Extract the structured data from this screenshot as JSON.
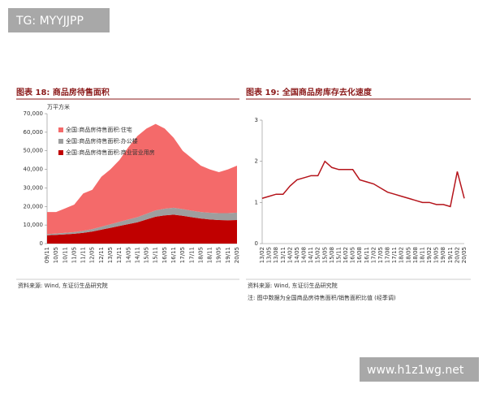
{
  "watermark": "TG: MYYJJPP",
  "site": "www.h1z1wg.net",
  "chart_data": [
    {
      "type": "stacked_area",
      "title": "图表 18: 商品房待售面积",
      "y_label": "万平方米",
      "source": "资料来源: Wind, 东证衍生品研究院",
      "categories": [
        "09/11",
        "10/05",
        "10/11",
        "11/05",
        "11/11",
        "12/05",
        "12/11",
        "13/05",
        "13/11",
        "14/05",
        "14/11",
        "15/05",
        "15/11",
        "16/05",
        "16/11",
        "17/05",
        "17/11",
        "18/05",
        "18/11",
        "19/05",
        "19/11",
        "20/05"
      ],
      "series": [
        {
          "name": "全国:商品房待售面积:商业营业用房",
          "color": "#c00000",
          "values": [
            4500,
            4700,
            5000,
            5300,
            5800,
            6500,
            7500,
            8500,
            9500,
            10500,
            11500,
            13000,
            14500,
            15200,
            15600,
            15000,
            14200,
            13500,
            13000,
            12700,
            12600,
            12700
          ]
        },
        {
          "name": "全国:商品房待售面积:办公楼",
          "color": "#9e9e9e",
          "values": [
            600,
            700,
            800,
            900,
            1100,
            1300,
            1600,
            1900,
            2200,
            2500,
            2800,
            3100,
            3400,
            3600,
            3700,
            3600,
            3500,
            3500,
            3600,
            3700,
            3800,
            4000
          ]
        },
        {
          "name": "全国:商品房待售面积:住宅",
          "color": "#f46a6a",
          "values": [
            11900,
            11600,
            13200,
            14800,
            20100,
            21200,
            26900,
            29600,
            33300,
            39000,
            43700,
            45900,
            46600,
            43200,
            37700,
            31400,
            28300,
            25000,
            23400,
            22100,
            23600,
            25300
          ]
        }
      ],
      "ylim": [
        0,
        70000
      ],
      "yticks": [
        0,
        {
          "value": 10000,
          "label": "10,000"
        },
        {
          "value": 20000,
          "label": "20,000"
        },
        {
          "value": 30000,
          "label": "30,000"
        },
        {
          "value": 40000,
          "label": "40,000"
        },
        {
          "value": 50000,
          "label": "50,000"
        },
        {
          "value": 60000,
          "label": "60,000"
        },
        {
          "value": 70000,
          "label": "70,000"
        }
      ]
    },
    {
      "type": "line",
      "title": "图表 19: 全国商品房库存去化速度",
      "source": "资料来源: Wind, 东证衍生品研究院",
      "note": "注: 图中数据为全国商品房待售面积/销售面积比值 (经季调)",
      "categories": [
        "13/02",
        "13/05",
        "13/08",
        "13/11",
        "14/02",
        "14/05",
        "14/08",
        "14/11",
        "15/02",
        "15/05",
        "15/08",
        "15/11",
        "16/02",
        "16/05",
        "16/08",
        "16/11",
        "17/02",
        "17/05",
        "17/08",
        "17/11",
        "18/02",
        "18/05",
        "18/08",
        "18/11",
        "19/02",
        "19/05",
        "19/08",
        "19/11",
        "20/02",
        "20/05"
      ],
      "series": [
        {
          "color": "#b5141b",
          "values": [
            1.1,
            1.15,
            1.2,
            1.2,
            1.4,
            1.55,
            1.6,
            1.65,
            1.65,
            2.0,
            1.85,
            1.8,
            1.8,
            1.8,
            1.55,
            1.5,
            1.45,
            1.35,
            1.25,
            1.2,
            1.15,
            1.1,
            1.05,
            1.0,
            1.0,
            0.95,
            0.95,
            0.9,
            1.75,
            1.1
          ]
        }
      ],
      "ylim": [
        0,
        3
      ],
      "yticks": [
        0,
        1,
        2,
        3
      ]
    }
  ]
}
